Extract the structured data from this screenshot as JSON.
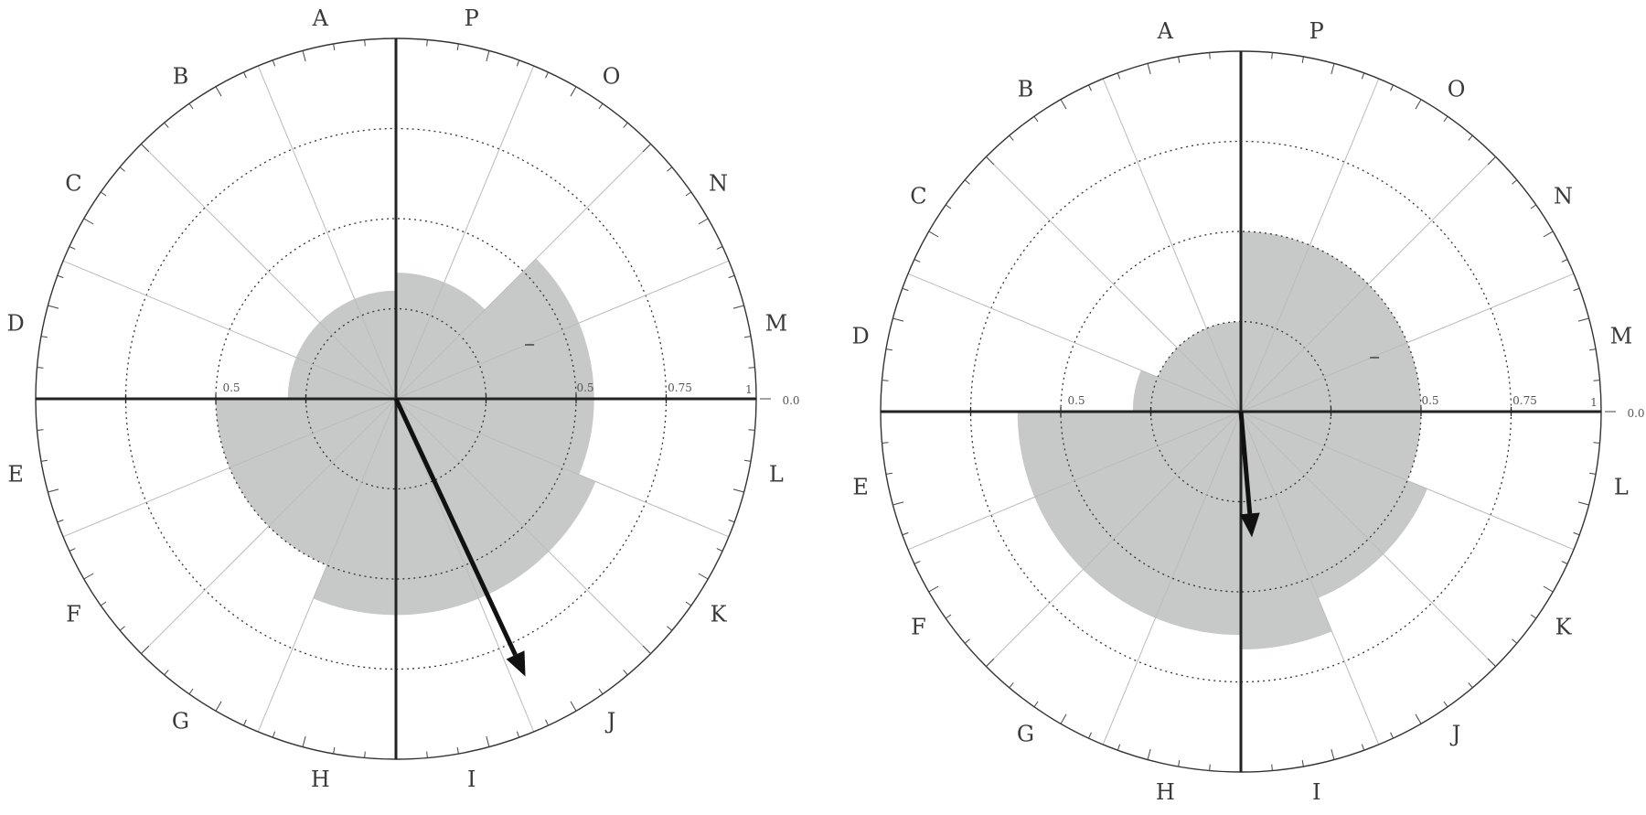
{
  "chart_data": [
    {
      "type": "polar-bar",
      "sectors": [
        "A",
        "B",
        "C",
        "D",
        "E",
        "F",
        "G",
        "H",
        "I",
        "J",
        "K",
        "L",
        "M",
        "N",
        "O",
        "P"
      ],
      "values": [
        0.3,
        0.3,
        0.3,
        0.3,
        0.5,
        0.5,
        0.5,
        0.6,
        0.6,
        0.6,
        0.6,
        0.55,
        0.55,
        0.55,
        0.35,
        0.35
      ],
      "rlim": [
        0,
        1
      ],
      "ring_values": [
        0.25,
        0.5,
        0.75
      ],
      "tick_labels": {
        "left": "0.5",
        "right_inner": "0.5",
        "right_mid": "0.75",
        "edge": "1",
        "zero": "0.0"
      },
      "arrow": {
        "angle_deg_clockwise_from_north": 155,
        "length": 0.85
      },
      "grid": true
    },
    {
      "type": "polar-bar",
      "sectors": [
        "A",
        "B",
        "C",
        "D",
        "E",
        "F",
        "G",
        "H",
        "I",
        "J",
        "K",
        "L",
        "M",
        "N",
        "O",
        "P"
      ],
      "values": [
        0.25,
        0.25,
        0.25,
        0.3,
        0.62,
        0.62,
        0.62,
        0.62,
        0.66,
        0.56,
        0.56,
        0.5,
        0.5,
        0.5,
        0.5,
        0.5
      ],
      "rlim": [
        0,
        1
      ],
      "ring_values": [
        0.25,
        0.5,
        0.75
      ],
      "tick_labels": {
        "left": "0.5",
        "right_inner": "0.5",
        "right_mid": "0.75",
        "edge": "1",
        "zero": "0.0"
      },
      "arrow": {
        "angle_deg_clockwise_from_north": 175,
        "length": 0.35
      },
      "grid": true
    }
  ]
}
